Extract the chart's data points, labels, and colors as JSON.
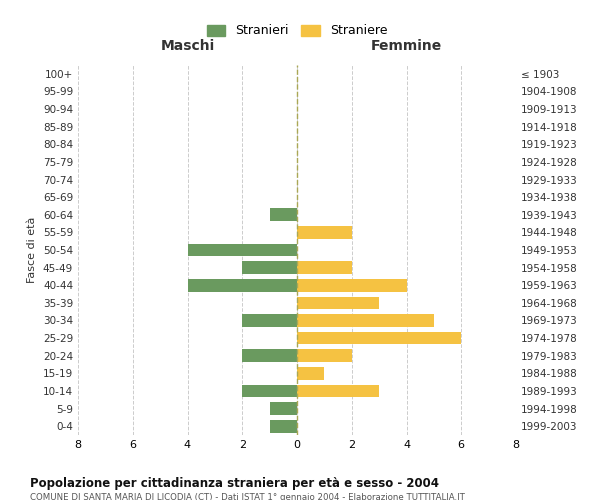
{
  "age_groups": [
    "0-4",
    "5-9",
    "10-14",
    "15-19",
    "20-24",
    "25-29",
    "30-34",
    "35-39",
    "40-44",
    "45-49",
    "50-54",
    "55-59",
    "60-64",
    "65-69",
    "70-74",
    "75-79",
    "80-84",
    "85-89",
    "90-94",
    "95-99",
    "100+"
  ],
  "birth_years": [
    "1999-2003",
    "1994-1998",
    "1989-1993",
    "1984-1988",
    "1979-1983",
    "1974-1978",
    "1969-1973",
    "1964-1968",
    "1959-1963",
    "1954-1958",
    "1949-1953",
    "1944-1948",
    "1939-1943",
    "1934-1938",
    "1929-1933",
    "1924-1928",
    "1919-1923",
    "1914-1918",
    "1909-1913",
    "1904-1908",
    "≤ 1903"
  ],
  "maschi": [
    1,
    1,
    2,
    0,
    2,
    0,
    2,
    0,
    4,
    2,
    4,
    0,
    1,
    0,
    0,
    0,
    0,
    0,
    0,
    0,
    0
  ],
  "femmine": [
    0,
    0,
    3,
    1,
    2,
    6,
    5,
    3,
    4,
    2,
    0,
    2,
    0,
    0,
    0,
    0,
    0,
    0,
    0,
    0,
    0
  ],
  "color_maschi": "#6a9a5f",
  "color_femmine": "#f5c242",
  "title": "Popolazione per cittadinanza straniera per età e sesso - 2004",
  "subtitle": "COMUNE DI SANTA MARIA DI LICODIA (CT) - Dati ISTAT 1° gennaio 2004 - Elaborazione TUTTITALIA.IT",
  "xlabel_left": "Maschi",
  "xlabel_right": "Femmine",
  "ylabel": "Fasce di età",
  "legend_maschi": "Stranieri",
  "legend_femmine": "Straniere",
  "xlim": 8,
  "background_color": "#ffffff",
  "grid_color": "#cccccc"
}
